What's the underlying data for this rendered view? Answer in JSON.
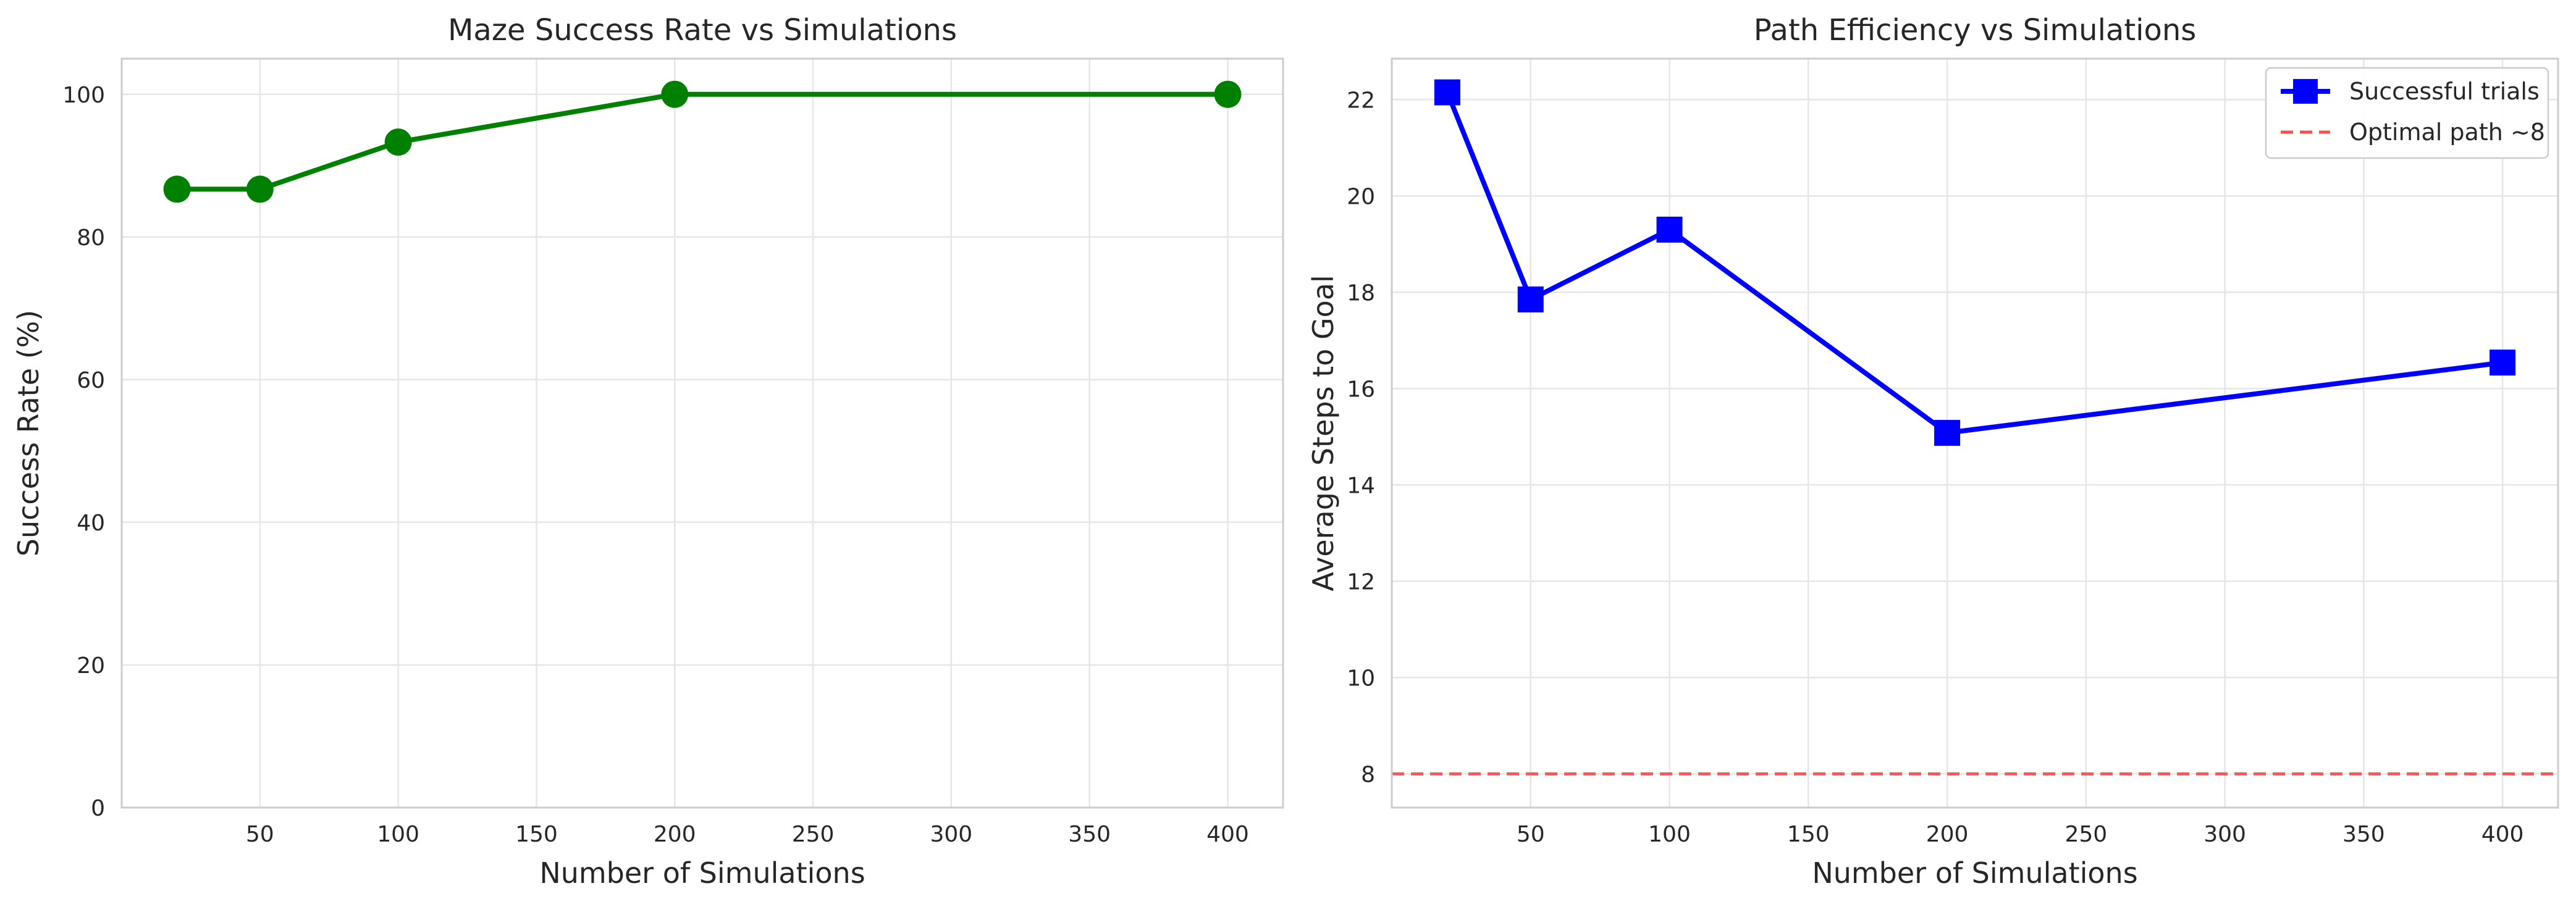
{
  "chart_data": [
    {
      "type": "line",
      "title": "Maze Success Rate vs Simulations",
      "xlabel": "Number of Simulations",
      "ylabel": "Success Rate (%)",
      "x": [
        20,
        50,
        100,
        200,
        400
      ],
      "series": [
        {
          "name": "",
          "color": "#008000",
          "marker": "circle",
          "values": [
            86.7,
            86.7,
            93.3,
            100,
            100
          ]
        }
      ],
      "xlim": [
        0,
        420
      ],
      "ylim": [
        0,
        105
      ],
      "xticks": [
        50,
        100,
        150,
        200,
        250,
        300,
        350,
        400
      ],
      "xtick_labels": [
        "50",
        "100",
        "150",
        "200",
        "250",
        "300",
        "350",
        "400"
      ],
      "yticks": [
        0,
        20,
        40,
        60,
        80,
        100
      ],
      "ytick_labels": [
        "0",
        "20",
        "40",
        "60",
        "80",
        "100"
      ],
      "grid": true
    },
    {
      "type": "line",
      "title": "Path Efficiency vs Simulations",
      "xlabel": "Number of Simulations",
      "ylabel": "Average Steps to Goal",
      "x": [
        20,
        50,
        100,
        200,
        400
      ],
      "series": [
        {
          "name": "Successful trials",
          "color": "#0000ff",
          "marker": "square",
          "values": [
            22.15,
            17.85,
            19.3,
            15.08,
            16.54
          ]
        }
      ],
      "reference_lines": [
        {
          "name": "Optimal path ~8",
          "y": 8,
          "color": "#ff4d4d",
          "style": "dashed"
        }
      ],
      "xlim": [
        0,
        420
      ],
      "ylim": [
        7.3,
        22.85
      ],
      "xticks": [
        50,
        100,
        150,
        200,
        250,
        300,
        350,
        400
      ],
      "xtick_labels": [
        "50",
        "100",
        "150",
        "200",
        "250",
        "300",
        "350",
        "400"
      ],
      "yticks": [
        8,
        10,
        12,
        14,
        16,
        18,
        20,
        22
      ],
      "ytick_labels": [
        "8",
        "10",
        "12",
        "14",
        "16",
        "18",
        "20",
        "22"
      ],
      "grid": true,
      "legend": "top-right"
    }
  ]
}
